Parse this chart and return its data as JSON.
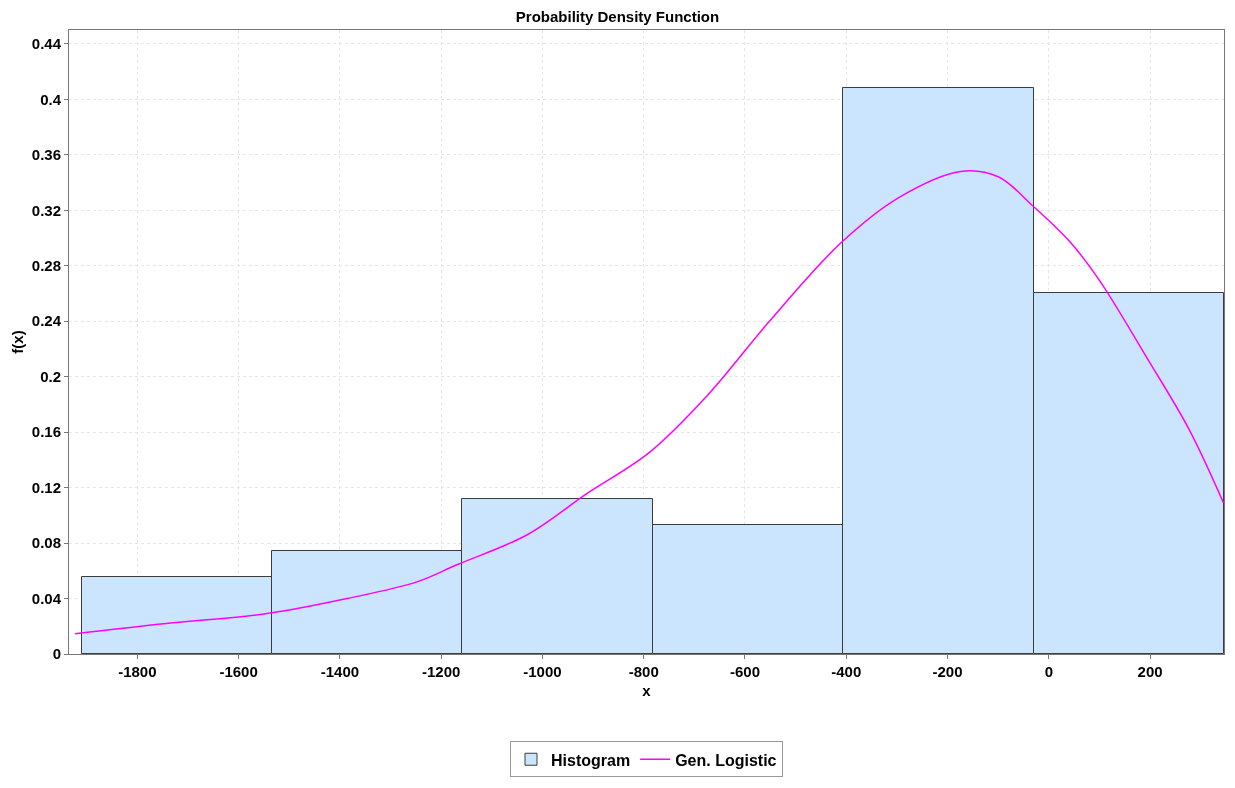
{
  "chart_data": {
    "type": "histogram",
    "title": "Probability Density Function",
    "xlabel": "x",
    "ylabel": "f(x)",
    "series": [
      {
        "name": "Histogram",
        "color": "#cce5ff",
        "bins": [
          -1910,
          -1534,
          -1158,
          -782,
          -406,
          -30,
          346
        ],
        "values": [
          0.0555,
          0.0743,
          0.1117,
          0.093,
          0.408,
          0.26
        ]
      },
      {
        "name": "Gen. Logistic",
        "type": "line",
        "color": "#ff00ff",
        "x": [
          -1923,
          -1743,
          -1547,
          -1386,
          -1248,
          -1168,
          -1030,
          -911,
          -790,
          -673,
          -554,
          -412,
          -297,
          -174,
          -99,
          -34,
          40,
          99,
          198,
          277,
          345
        ],
        "values": [
          0.0146,
          0.022,
          0.029,
          0.04,
          0.052,
          0.0645,
          0.086,
          0.116,
          0.145,
          0.187,
          0.239,
          0.296,
          0.329,
          0.348,
          0.344,
          0.324,
          0.298,
          0.27,
          0.211,
          0.162,
          0.109
        ]
      }
    ],
    "xlim": [
      -1935,
      346
    ],
    "xticks": [
      -1800,
      -1600,
      -1400,
      -1200,
      -1000,
      -800,
      -600,
      -400,
      -200,
      0,
      200
    ],
    "ylim": [
      0,
      0.45
    ],
    "yticks": [
      0,
      0.04,
      0.08,
      0.12,
      0.16,
      0.2,
      0.24,
      0.28,
      0.32,
      0.36,
      0.4,
      0.44
    ],
    "grid": true,
    "legend": "bottom",
    "marker": "none",
    "line_style": "solid"
  }
}
